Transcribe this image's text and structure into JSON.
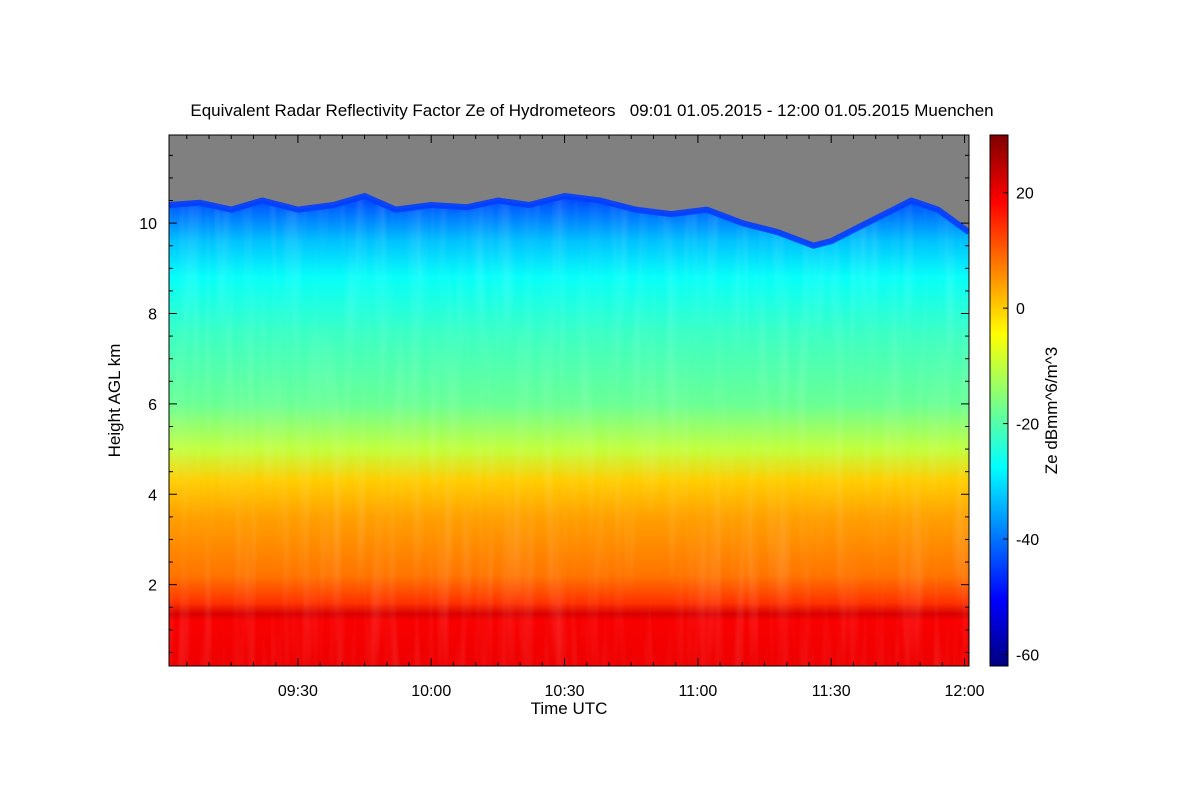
{
  "chart_data": {
    "type": "heatmap",
    "title": "Equivalent Radar Reflectivity Factor Ze of Hydrometeors   09:01 01.05.2015 - 12:00 01.05.2015 Muenchen",
    "xlabel": "Time UTC",
    "ylabel": "Height AGL km",
    "x_ticks": [
      "09:30",
      "10:00",
      "10:30",
      "11:00",
      "11:30",
      "12:00"
    ],
    "x_tick_minutes": [
      30,
      60,
      90,
      120,
      150,
      180
    ],
    "xlim_minutes": [
      1,
      181
    ],
    "y_ticks": [
      2,
      4,
      6,
      8,
      10
    ],
    "ylim": [
      0.2,
      11.95
    ],
    "colorbar": {
      "label": "Ze dBmm^6/m^3",
      "ticks": [
        20,
        0,
        -20,
        -40,
        -60
      ],
      "range": [
        -62,
        30
      ],
      "colors": [
        "#00007f",
        "#0000ff",
        "#007fff",
        "#00ffff",
        "#7fff7f",
        "#ffff00",
        "#ff7f00",
        "#ff0000",
        "#7f0000"
      ]
    },
    "no_signal_color": "#808080",
    "echo_top_km": [
      [
        1,
        10.4
      ],
      [
        8,
        10.45
      ],
      [
        15,
        10.3
      ],
      [
        22,
        10.5
      ],
      [
        30,
        10.3
      ],
      [
        38,
        10.4
      ],
      [
        45,
        10.6
      ],
      [
        52,
        10.3
      ],
      [
        60,
        10.4
      ],
      [
        68,
        10.35
      ],
      [
        75,
        10.5
      ],
      [
        82,
        10.4
      ],
      [
        90,
        10.6
      ],
      [
        98,
        10.5
      ],
      [
        106,
        10.3
      ],
      [
        114,
        10.2
      ],
      [
        122,
        10.3
      ],
      [
        130,
        10.0
      ],
      [
        138,
        9.8
      ],
      [
        146,
        9.5
      ],
      [
        150,
        9.6
      ],
      [
        156,
        9.9
      ],
      [
        162,
        10.2
      ],
      [
        168,
        10.5
      ],
      [
        174,
        10.3
      ],
      [
        181,
        9.8
      ]
    ],
    "ze_profile": [
      {
        "height_km": 0.2,
        "ze": 20
      },
      {
        "height_km": 1.2,
        "ze": 19
      },
      {
        "height_km": 1.35,
        "ze": 22
      },
      {
        "height_km": 1.6,
        "ze": 14
      },
      {
        "height_km": 2.2,
        "ze": 8
      },
      {
        "height_km": 3.5,
        "ze": 4
      },
      {
        "height_km": 4.3,
        "ze": 0
      },
      {
        "height_km": 5.0,
        "ze": -10
      },
      {
        "height_km": 6.0,
        "ze": -18
      },
      {
        "height_km": 7.5,
        "ze": -22
      },
      {
        "height_km": 8.8,
        "ze": -27
      },
      {
        "height_km": 9.6,
        "ze": -33
      },
      {
        "height_km": 10.2,
        "ze": -40
      },
      {
        "height_km": 10.7,
        "ze": -46
      }
    ]
  }
}
